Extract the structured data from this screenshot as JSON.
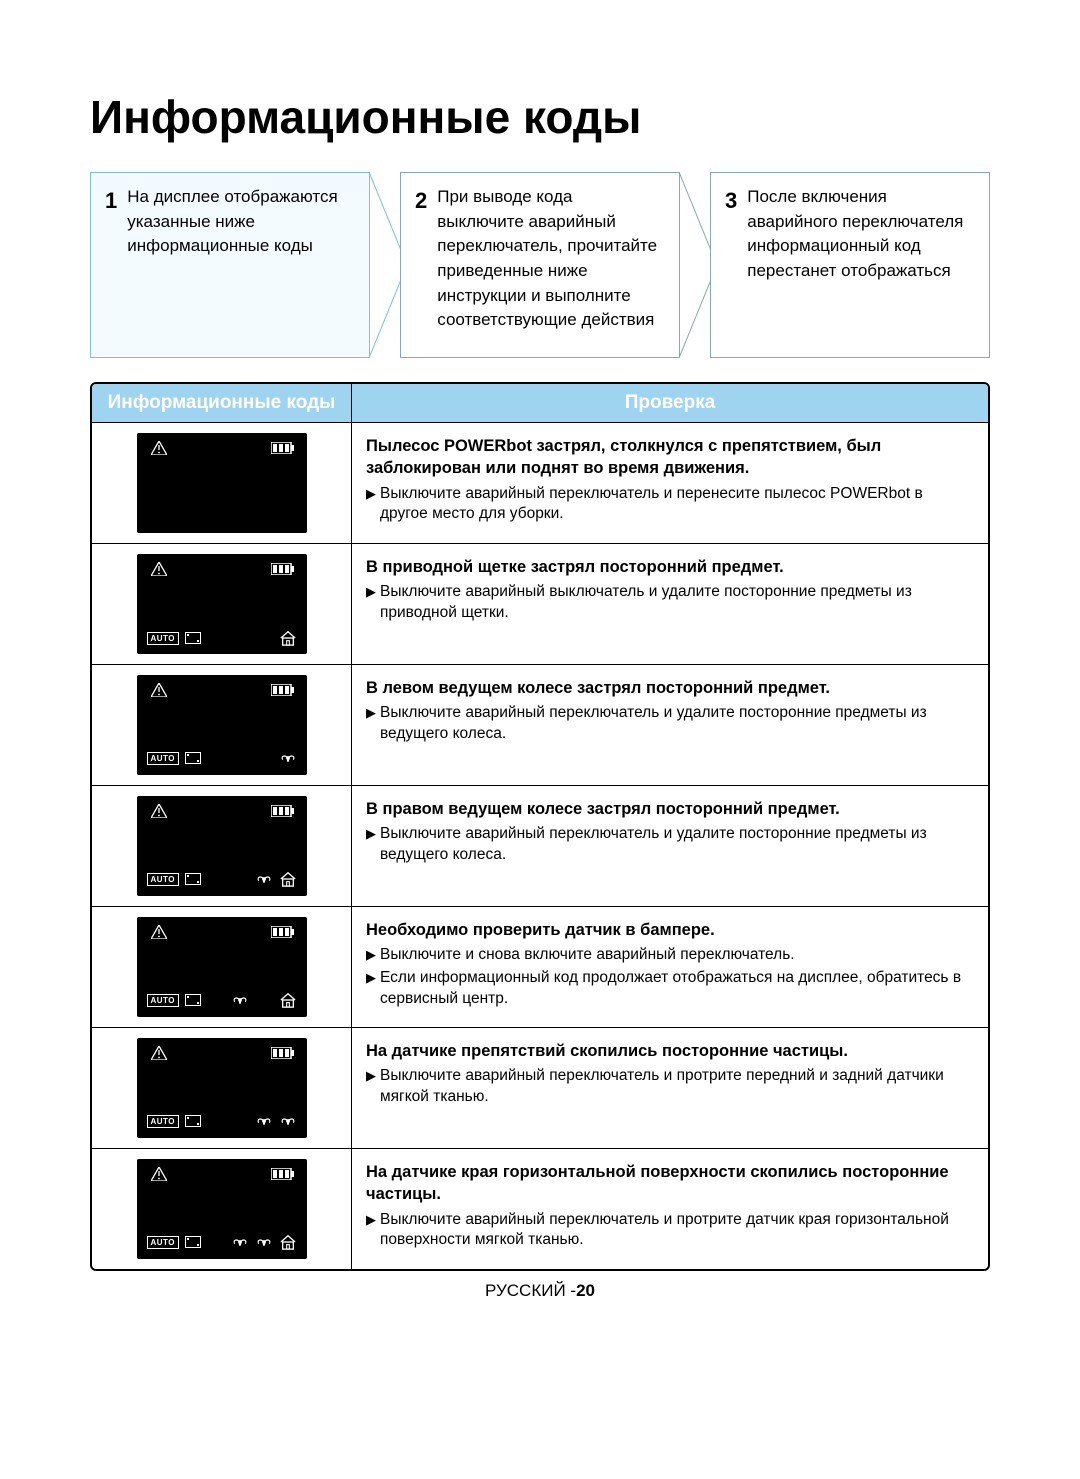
{
  "title": "Информационные коды",
  "steps": [
    {
      "num": "1",
      "text": "На дисплее отображаются указанные ниже информационные коды"
    },
    {
      "num": "2",
      "text": "При выводе кода выключите аварийный переключатель, прочитайте приведенные ниже инструкции и выполните соответствующие действия"
    },
    {
      "num": "3",
      "text": "После включения аварийного переключателя информационный код перестанет отображаться"
    }
  ],
  "table": {
    "header": {
      "col1": "Информационные коды",
      "col2": "Проверка"
    },
    "rows": [
      {
        "icons": {
          "bottom": false,
          "fan": 0,
          "home": 0
        },
        "title": "Пылесос POWERbot застрял, столкнулся с препятствием, был заблокирован или поднят во время движения.",
        "items": [
          "Выключите аварийный переключатель и перенесите пылесос POWERbot в другое место для уборки."
        ]
      },
      {
        "icons": {
          "bottom": true,
          "fan": 0,
          "home": 1
        },
        "title": "В приводной щетке застрял посторонний предмет.",
        "items": [
          "Выключите аварийный выключатель и удалите посторонние предметы из приводной щетки."
        ]
      },
      {
        "icons": {
          "bottom": true,
          "fan": 1,
          "home": 0
        },
        "title": "В левом ведущем колесе застрял посторонний предмет.",
        "items": [
          "Выключите аварийный переключатель и удалите посторонние предметы из ведущего колеса."
        ]
      },
      {
        "icons": {
          "bottom": true,
          "fan": 1,
          "home": 1
        },
        "title": "В правом ведущем колесе застрял посторонний предмет.",
        "items": [
          "Выключите аварийный переключатель и удалите посторонние предметы из ведущего колеса."
        ]
      },
      {
        "icons": {
          "bottom": true,
          "fan": 1,
          "home": 1,
          "extra_fan_left": false,
          "order": "fan-space-home"
        },
        "title": "Необходимо проверить датчик в бампере.",
        "items": [
          "Выключите и снова включите аварийный переключатель.",
          "Если информационный код продолжает отображаться на дисплее, обратитесь в сервисный центр."
        ],
        "displayVariant": "fan-left-home-right"
      },
      {
        "icons": {
          "bottom": true,
          "fan": 2,
          "home": 0
        },
        "title": "На датчике препятствий скопились посторонние частицы.",
        "items": [
          "Выключите аварийный переключатель и протрите передний и задний датчики мягкой тканью."
        ]
      },
      {
        "icons": {
          "bottom": true,
          "fan": 2,
          "home": 1
        },
        "title": "На датчике края горизонтальной поверхности скопились посторонние частицы.",
        "items": [
          "Выключите аварийный переключатель и протрите датчик края горизонтальной поверхности мягкой тканью."
        ]
      }
    ]
  },
  "footer": {
    "lang": "РУССКИЙ -",
    "page": "20"
  },
  "colors": {
    "header_bg": "#9fd4f0",
    "step_highlight_bg": "#f4fbff",
    "step_border": "#7cbfe0"
  }
}
